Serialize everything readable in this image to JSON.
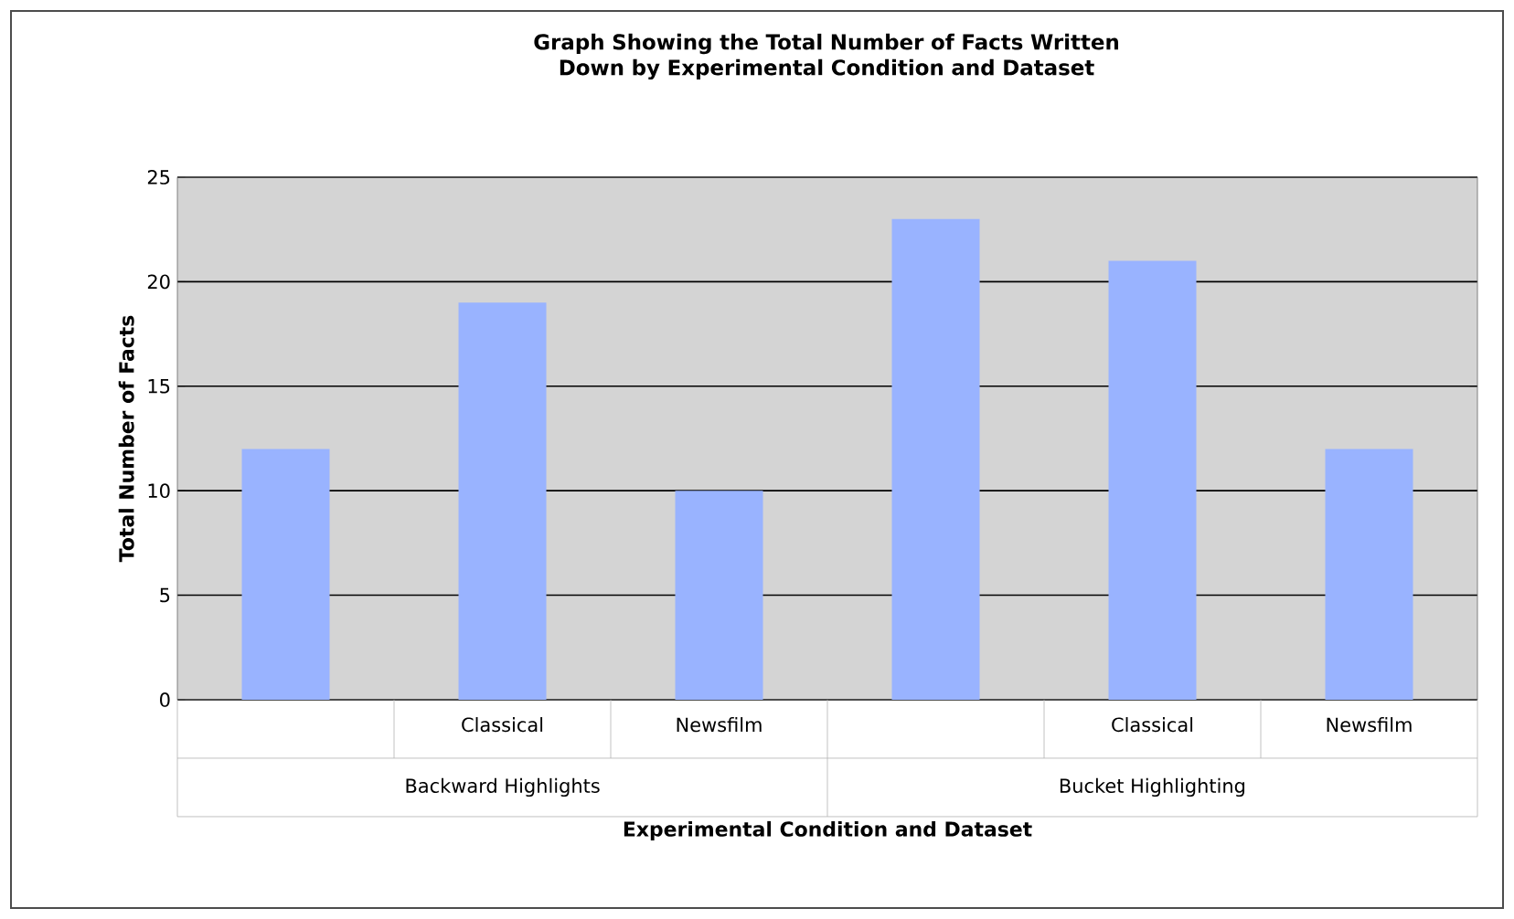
{
  "chart_data": {
    "type": "bar",
    "title": "Graph Showing the Total Number of Facts Written Down by Experimental Condition and Dataset",
    "xlabel": "Experimental Condition and Dataset",
    "ylabel": "Total Number of Facts",
    "categories": [
      null,
      "Classical",
      "Newsfilm",
      null,
      "Classical",
      "Newsfilm"
    ],
    "values": [
      12,
      19,
      10,
      23,
      21,
      12
    ],
    "color": "#99b3ff",
    "ylim": [
      0,
      25
    ],
    "yticks": [
      0,
      5,
      10,
      15,
      20,
      25
    ],
    "grid": "y",
    "annotations": [
      "Backward Highlights",
      "Bucket Highlighting"
    ]
  }
}
